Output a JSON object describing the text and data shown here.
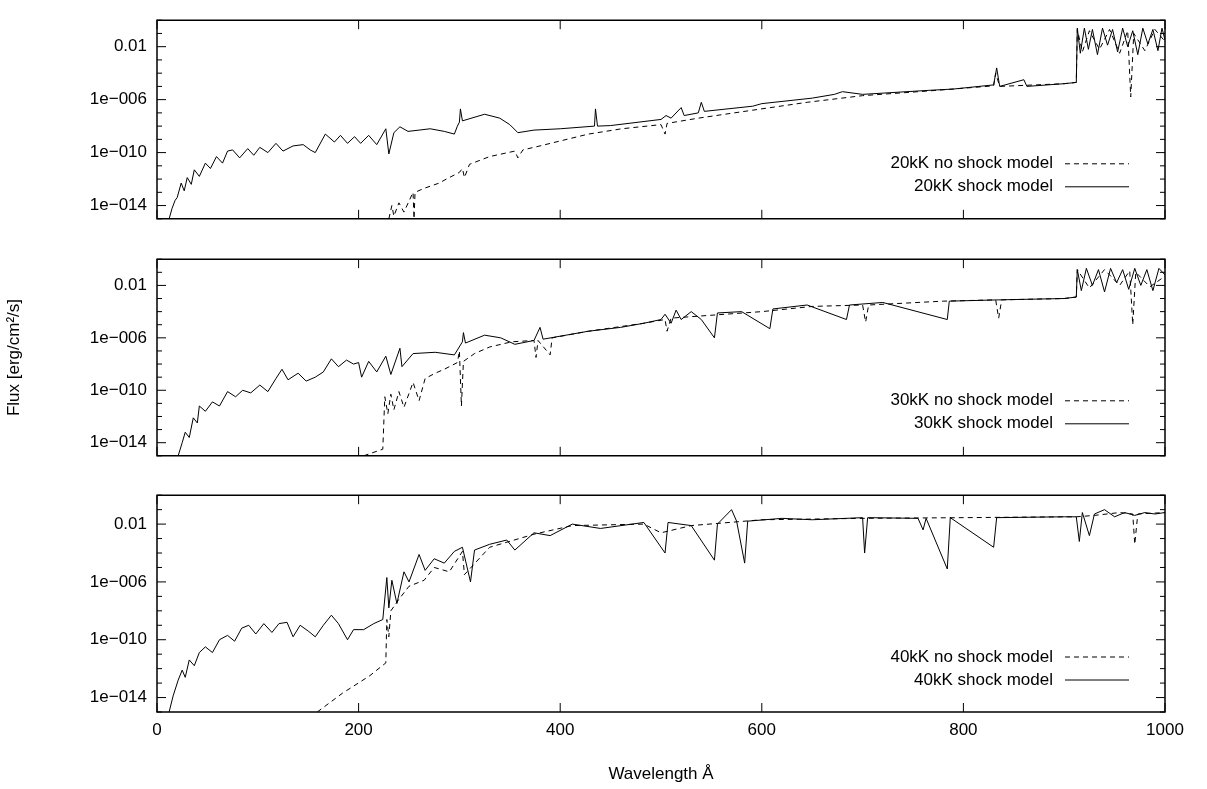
{
  "chart_data": [
    {
      "type": "line",
      "log": true,
      "xlim": [
        0,
        1000
      ],
      "xticks": [
        0,
        200,
        400,
        600,
        800,
        1000
      ],
      "ylim": [
        1e-15,
        1
      ],
      "tick_labels": "y",
      "legend": "bottom right",
      "yticks": [
        {
          "value": 1e-15,
          "label": null
        },
        {
          "value": 1e-14,
          "label": "1e−014"
        },
        {
          "value": 1e-13,
          "label": null
        },
        {
          "value": 1e-12,
          "label": null
        },
        {
          "value": 1e-11,
          "label": null
        },
        {
          "value": 1e-10,
          "label": "1e−010"
        },
        {
          "value": 1e-09,
          "label": null
        },
        {
          "value": 1e-08,
          "label": null
        },
        {
          "value": 1e-07,
          "label": null
        },
        {
          "value": 1e-06,
          "label": "1e−006"
        },
        {
          "value": 1e-05,
          "label": null
        },
        {
          "value": 0.0001,
          "label": null
        },
        {
          "value": 0.001,
          "label": null
        },
        {
          "value": 0.01,
          "label": "0.01"
        },
        {
          "value": 0.1,
          "label": null
        },
        {
          "value": 1,
          "label": null
        }
      ],
      "series": [
        {
          "name": "20kK no shock model",
          "color": "#000000",
          "line_style": "dashed",
          "x": [
            230,
            233,
            235,
            240,
            245,
            254,
            255,
            256,
            265,
            280,
            287,
            300,
            303,
            305,
            310,
            330,
            355,
            358,
            363,
            380,
            401,
            428,
            461,
            500,
            504,
            506,
            537,
            591,
            645,
            700,
            765,
            830,
            832,
            836,
            900,
            912,
            913,
            918,
            925,
            935,
            945,
            955,
            963,
            966,
            969,
            980,
            990,
            1000
          ],
          "values": [
            1e-15,
            1e-14,
            1.6e-15,
            1.6e-14,
            3.2e-15,
            1e-13,
            1e-15,
            1e-13,
            2e-13,
            5e-13,
            1e-12,
            3.2e-12,
            6.3e-12,
            1.3e-12,
            1.3e-11,
            5e-11,
            1.3e-10,
            4e-11,
            1.6e-10,
            3.2e-10,
            7.9e-10,
            2.5e-09,
            6.3e-09,
            1.3e-08,
            2.5e-09,
            1.6e-08,
            4e-08,
            1.6e-07,
            6.3e-07,
            2e-06,
            4.5e-06,
            1.1e-05,
            0.0001,
            1e-05,
            1.6e-05,
            2e-05,
            0.2,
            0.004,
            0.16,
            0.0063,
            0.2,
            0.0032,
            0.16,
            1.6e-06,
            0.1,
            0.005,
            0.2,
            0.025
          ]
        },
        {
          "name": "20kK shock model",
          "color": "#000000",
          "line_style": "solid",
          "x": [
            12,
            15,
            18,
            20,
            24,
            27,
            30,
            34,
            37,
            42,
            48,
            53,
            59,
            65,
            70,
            75,
            82,
            90,
            96,
            102,
            110,
            118,
            125,
            135,
            145,
            152,
            157,
            167,
            176,
            182,
            189,
            196,
            202,
            210,
            218,
            227,
            230,
            235,
            241,
            249,
            260,
            271,
            285,
            295,
            298,
            300,
            301,
            303,
            325,
            340,
            350,
            358,
            374,
            400,
            434,
            435,
            437,
            450,
            500,
            505,
            510,
            520,
            523,
            537,
            540,
            543,
            591,
            600,
            650,
            672,
            680,
            700,
            765,
            790,
            830,
            833,
            836,
            860,
            863,
            900,
            912,
            913,
            916,
            920,
            924,
            928,
            933,
            938,
            943,
            948,
            953,
            958,
            963,
            968,
            973,
            978,
            983,
            988,
            993,
            997,
            1000
          ],
          "values": [
            1e-15,
            6.3e-15,
            2.5e-14,
            4e-14,
            5e-13,
            1.3e-13,
            1.3e-12,
            4e-13,
            5e-12,
            1.6e-12,
            1.6e-11,
            6.3e-12,
            5e-11,
            1.6e-11,
            1.3e-10,
            1.6e-10,
            4e-11,
            2e-10,
            6.3e-11,
            2.5e-10,
            1e-10,
            5e-10,
            1.3e-10,
            3.2e-10,
            4e-10,
            1.6e-10,
            1e-10,
            2.5e-09,
            6.3e-10,
            2e-09,
            5e-10,
            1.6e-09,
            5e-10,
            2e-09,
            4e-10,
            6.3e-09,
            7.9e-11,
            3.2e-09,
            8.9e-09,
            4e-09,
            5e-09,
            6.3e-09,
            4e-09,
            2.5e-09,
            1e-08,
            2e-08,
            2e-07,
            2.5e-08,
            7.9e-08,
            4e-08,
            1.3e-08,
            3.2e-09,
            5e-09,
            6.3e-09,
            1e-08,
            2e-07,
            1e-08,
            1.1e-08,
            3.2e-08,
            6.3e-08,
            4e-08,
            2.5e-07,
            6.3e-08,
            1e-07,
            6.3e-07,
            1.3e-07,
            3.2e-07,
            5e-07,
            1.3e-06,
            2.5e-06,
            4e-06,
            2.5e-06,
            5e-06,
            6.3e-06,
            1.3e-05,
            0.00025,
            1e-05,
            3.2e-05,
            1e-05,
            1.6e-05,
            2e-05,
            0.25,
            0.0032,
            0.25,
            0.0063,
            0.2,
            0.0025,
            0.25,
            0.013,
            0.2,
            0.004,
            0.25,
            0.01,
            0.16,
            0.0025,
            0.25,
            0.016,
            0.2,
            0.005,
            0.25,
            0.032
          ]
        }
      ]
    },
    {
      "type": "line",
      "log": true,
      "xlim": [
        0,
        1000
      ],
      "xticks": [
        0,
        200,
        400,
        600,
        800,
        1000
      ],
      "ylim": [
        1e-15,
        1
      ],
      "tick_labels": "y",
      "legend": "bottom right",
      "ylabel": "Flux [erg/cm²/s]",
      "yticks": [
        {
          "value": 1e-15,
          "label": null
        },
        {
          "value": 1e-14,
          "label": "1e−014"
        },
        {
          "value": 1e-13,
          "label": null
        },
        {
          "value": 1e-12,
          "label": null
        },
        {
          "value": 1e-11,
          "label": null
        },
        {
          "value": 1e-10,
          "label": "1e−010"
        },
        {
          "value": 1e-09,
          "label": null
        },
        {
          "value": 1e-08,
          "label": null
        },
        {
          "value": 1e-07,
          "label": null
        },
        {
          "value": 1e-06,
          "label": "1e−006"
        },
        {
          "value": 1e-05,
          "label": null
        },
        {
          "value": 0.0001,
          "label": null
        },
        {
          "value": 0.001,
          "label": null
        },
        {
          "value": 0.01,
          "label": "0.01"
        },
        {
          "value": 0.1,
          "label": null
        },
        {
          "value": 1,
          "label": null
        }
      ],
      "series": [
        {
          "name": "30kK no shock model",
          "color": "#000000",
          "line_style": "dashed",
          "x": [
            205,
            224,
            226,
            229,
            232,
            235,
            240,
            245,
            254,
            260,
            266,
            276,
            285,
            298,
            300,
            302,
            304,
            315,
            330,
            352,
            374,
            376,
            378,
            390,
            392,
            428,
            483,
            504,
            506,
            510,
            600,
            650,
            700,
            703,
            706,
            780,
            832,
            835,
            838,
            900,
            912,
            913,
            925,
            940,
            955,
            965,
            968,
            971,
            985,
            1000
          ],
          "values": [
            1e-15,
            3.2e-15,
            3.2e-11,
            1.6e-12,
            5e-11,
            3.2e-12,
            7.9e-11,
            5e-12,
            4e-10,
            1.6e-11,
            7.9e-10,
            2e-09,
            4e-09,
            1.3e-08,
            1e-07,
            6.3e-12,
            1.6e-08,
            6.3e-08,
            2e-07,
            5e-07,
            6.3e-07,
            3.2e-08,
            6.3e-07,
            5e-08,
            1e-06,
            3.2e-06,
            1.3e-05,
            2.5e-05,
            3.2e-06,
            3.2e-05,
            0.0001,
            0.00025,
            0.00032,
            1.6e-05,
            0.00032,
            0.00063,
            0.00079,
            3.2e-05,
            0.00079,
            0.001,
            0.0013,
            0.16,
            0.0063,
            0.16,
            0.01,
            0.13,
            1e-05,
            0.1,
            0.0079,
            0.05
          ]
        },
        {
          "name": "30kK shock model",
          "color": "#000000",
          "line_style": "solid",
          "x": [
            21,
            25,
            28,
            32,
            36,
            40,
            42,
            48,
            55,
            62,
            70,
            78,
            85,
            93,
            102,
            110,
            118,
            124,
            130,
            140,
            148,
            157,
            165,
            173,
            180,
            188,
            195,
            200,
            203,
            210,
            218,
            227,
            232,
            241,
            243,
            254,
            276,
            295,
            303,
            304,
            306,
            325,
            341,
            355,
            374,
            380,
            383,
            428,
            460,
            483,
            500,
            504,
            510,
            515,
            520,
            530,
            540,
            553,
            556,
            580,
            608,
            611,
            645,
            684,
            687,
            720,
            784,
            786,
            835,
            900,
            912,
            913,
            917,
            922,
            928,
            934,
            940,
            946,
            952,
            958,
            964,
            970,
            976,
            982,
            988,
            994,
            1000
          ],
          "values": [
            1e-15,
            1e-14,
            6.3e-14,
            2.5e-14,
            7.9e-13,
            3.2e-13,
            6.3e-12,
            2.5e-12,
            1.3e-11,
            6.3e-12,
            7.9e-11,
            3.2e-11,
            1e-10,
            6.3e-11,
            2.5e-10,
            7.9e-11,
            7.9e-10,
            4e-09,
            6.3e-10,
            2e-09,
            5e-10,
            1e-09,
            2.5e-09,
            2.5e-08,
            6.3e-09,
            2e-08,
            1e-08,
            1.3e-08,
            1e-09,
            1.6e-08,
            2.5e-09,
            4e-08,
            1.6e-09,
            1.6e-07,
            6.3e-09,
            6.3e-08,
            7.9e-08,
            5e-08,
            5e-07,
            2.5e-06,
            4e-07,
            1.6e-06,
            1e-06,
            3.2e-07,
            6.3e-07,
            6.3e-06,
            7.9e-07,
            3.2e-06,
            6.3e-06,
            1.3e-05,
            2.5e-05,
            6.3e-05,
            1.3e-05,
            0.00013,
            2.5e-05,
            0.0001,
            2.5e-05,
            1e-06,
            7.9e-05,
            0.0001,
            5e-06,
            0.00016,
            0.00032,
            2.5e-05,
            0.00032,
            0.0005,
            2.5e-05,
            0.00063,
            0.00079,
            0.001,
            0.0013,
            0.16,
            0.004,
            0.2,
            0.01,
            0.16,
            0.0032,
            0.2,
            0.016,
            0.16,
            0.005,
            0.2,
            0.01,
            0.16,
            0.004,
            0.2,
            0.063
          ]
        }
      ]
    },
    {
      "type": "line",
      "log": true,
      "xlim": [
        0,
        1000
      ],
      "xticks": [
        0,
        200,
        400,
        600,
        800,
        1000
      ],
      "ylim": [
        1e-15,
        1
      ],
      "legend": "bottom right",
      "xlabel": "Wavelength Å",
      "yticks": [
        {
          "value": 1e-15,
          "label": null
        },
        {
          "value": 1e-14,
          "label": "1e−014"
        },
        {
          "value": 1e-13,
          "label": null
        },
        {
          "value": 1e-12,
          "label": null
        },
        {
          "value": 1e-11,
          "label": null
        },
        {
          "value": 1e-10,
          "label": "1e−010"
        },
        {
          "value": 1e-09,
          "label": null
        },
        {
          "value": 1e-08,
          "label": null
        },
        {
          "value": 1e-07,
          "label": null
        },
        {
          "value": 1e-06,
          "label": "1e−006"
        },
        {
          "value": 1e-05,
          "label": null
        },
        {
          "value": 0.0001,
          "label": null
        },
        {
          "value": 0.001,
          "label": null
        },
        {
          "value": 0.01,
          "label": "0.01"
        },
        {
          "value": 0.1,
          "label": null
        },
        {
          "value": 1,
          "label": null
        }
      ],
      "series": [
        {
          "name": "40kK no shock model",
          "color": "#000000",
          "line_style": "dashed",
          "x": [
            159,
            184,
            211,
            227,
            228,
            230,
            232,
            240,
            250,
            265,
            275,
            290,
            303,
            305,
            330,
            374,
            412,
            483,
            500,
            530,
            600,
            700,
            800,
            900,
            912,
            930,
            955,
            968,
            970,
            973,
            1000
          ],
          "values": [
            1e-15,
            2e-14,
            3.2e-13,
            2.5e-12,
            2.5e-09,
            1.6e-10,
            1e-08,
            6.3e-08,
            5e-07,
            1.3e-06,
            1e-05,
            5e-06,
            0.00013,
            3.2e-06,
            0.00025,
            0.002,
            0.0079,
            0.01,
            0.0025,
            0.0079,
            0.02,
            0.025,
            0.028,
            0.032,
            0.032,
            0.04,
            0.063,
            0.05,
            0.0004,
            0.05,
            0.063
          ]
        },
        {
          "name": "40kK shock model",
          "color": "#000000",
          "line_style": "solid",
          "x": [
            12,
            16,
            21,
            25,
            28,
            32,
            37,
            42,
            48,
            55,
            62,
            70,
            77,
            84,
            91,
            98,
            106,
            114,
            121,
            129,
            135,
            142,
            150,
            157,
            165,
            173,
            180,
            189,
            195,
            205,
            215,
            224,
            228,
            230,
            233,
            238,
            245,
            250,
            260,
            266,
            275,
            285,
            295,
            303,
            311,
            315,
            330,
            347,
            355,
            374,
            390,
            412,
            440,
            483,
            504,
            507,
            530,
            553,
            556,
            570,
            575,
            583,
            586,
            620,
            650,
            700,
            702,
            705,
            755,
            760,
            763,
            784,
            787,
            830,
            833,
            900,
            912,
            915,
            918,
            925,
            930,
            940,
            950,
            960,
            970,
            980,
            990,
            1000
          ],
          "values": [
            1e-15,
            1.3e-14,
            1.6e-13,
            7.9e-13,
            2.5e-13,
            4e-12,
            1.6e-12,
            1.3e-11,
            3.2e-11,
            1.3e-11,
            1e-10,
            2e-10,
            7.9e-11,
            6.3e-10,
            1e-09,
            2.5e-10,
            1.3e-09,
            3.2e-10,
            1.3e-09,
            1.6e-09,
            1.6e-10,
            1e-09,
            4e-10,
            1.6e-10,
            1e-09,
            5e-09,
            1.3e-09,
            1e-10,
            5e-10,
            5e-10,
            1.3e-09,
            2.5e-09,
            2e-06,
            1.6e-08,
            1.3e-06,
            3.2e-08,
            5e-06,
            1e-06,
            7.9e-05,
            6.3e-06,
            4e-05,
            2e-05,
            0.00013,
            0.00025,
            1e-06,
            0.00016,
            0.0004,
            0.00079,
            0.00016,
            0.0025,
            0.0016,
            0.01,
            0.005,
            0.013,
            0.0001,
            0.013,
            0.0079,
            3.2e-05,
            0.01,
            0.1,
            0.016,
            2e-05,
            0.016,
            0.025,
            0.02,
            0.028,
            0.0001,
            0.028,
            0.025,
            0.004,
            0.025,
            7.9e-06,
            0.028,
            0.00025,
            0.028,
            0.032,
            0.032,
            0.00063,
            0.063,
            0.0016,
            0.05,
            0.1,
            0.032,
            0.063,
            0.04,
            0.063,
            0.05,
            0.063
          ]
        }
      ]
    }
  ]
}
